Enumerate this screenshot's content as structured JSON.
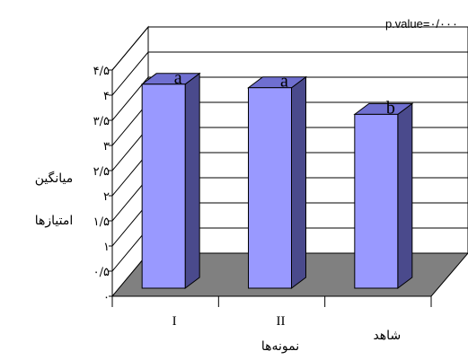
{
  "chart_data": {
    "type": "bar",
    "style": "3d-column",
    "categories": [
      "I",
      "II",
      "شاهد"
    ],
    "values": [
      4.2,
      4.13,
      3.6
    ],
    "significance_letters": [
      "a",
      "a",
      "b"
    ],
    "ylabel_lines": [
      "میانگین",
      "امتیازها"
    ],
    "xlabel": "نمونه‌ها",
    "annotation": "p.value=۰/۰۰۰",
    "ylim": [
      0,
      4.5
    ],
    "y_ticks": [
      0,
      0.5,
      1,
      1.5,
      2,
      2.5,
      3,
      3.5,
      4,
      4.5
    ],
    "y_tick_labels": [
      "۰",
      "۰/۵",
      "۱",
      "۱/۵",
      "۲",
      "۲/۵",
      "۳",
      "۳/۵",
      "۴",
      "۴/۵"
    ],
    "grid": true,
    "legend": "none",
    "colors": {
      "bar_front": "#9999ff",
      "bar_side": "#4a4a8c",
      "bar_top": "#6f6fd0",
      "floor": "#808080",
      "wall": "#ffffff",
      "line": "#000000"
    }
  }
}
